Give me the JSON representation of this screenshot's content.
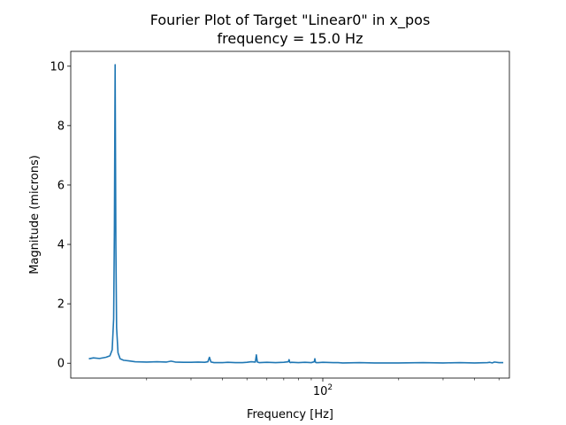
{
  "chart_data": {
    "type": "line",
    "title": "Fourier Plot of Target \"Linear0\" in x_pos",
    "subtitle": "frequency = 15.0 Hz",
    "xlabel": "Frequency [Hz]",
    "ylabel": "Magnitude (microns)",
    "xscale": "log",
    "xlim": [
      10,
      550
    ],
    "ylim": [
      -0.5,
      10.5
    ],
    "grid": false,
    "legend": "none",
    "x_ticks": [
      {
        "value": 100,
        "label": "10²"
      }
    ],
    "y_ticks": [
      {
        "value": 0,
        "label": "0"
      },
      {
        "value": 2,
        "label": "2"
      },
      {
        "value": 4,
        "label": "4"
      },
      {
        "value": 6,
        "label": "6"
      },
      {
        "value": 8,
        "label": "8"
      },
      {
        "value": 10,
        "label": "10"
      }
    ],
    "series": [
      {
        "color": "#1f77b4",
        "x": [
          11.8,
          12.3,
          13.0,
          13.8,
          14.3,
          14.6,
          14.8,
          14.9,
          15.0,
          15.1,
          15.2,
          15.4,
          15.7,
          16.2,
          17.0,
          18.0,
          20.0,
          22.0,
          24.0,
          25.0,
          26.0,
          28.0,
          30.0,
          32.0,
          34.0,
          35.0,
          35.5,
          36.0,
          36.5,
          37.0,
          40.0,
          42.0,
          45.0,
          48.0,
          50.0,
          52.0,
          54.0,
          54.5,
          55.0,
          55.5,
          56.0,
          60.0,
          65.0,
          70.0,
          73.0,
          73.5,
          74.0,
          74.5,
          75.0,
          80.0,
          85.0,
          90.0,
          92.5,
          93.0,
          93.5,
          94.0,
          96.0,
          100.0,
          110.0,
          115.0,
          120.0,
          140.0,
          160.0,
          200.0,
          250.0,
          300.0,
          350.0,
          400.0,
          450.0,
          460.0,
          470.0,
          480.0,
          500.0,
          520.0
        ],
        "y": [
          0.15,
          0.18,
          0.16,
          0.2,
          0.25,
          0.45,
          1.5,
          4.5,
          10.05,
          4.0,
          1.2,
          0.35,
          0.15,
          0.1,
          0.08,
          0.05,
          0.04,
          0.05,
          0.04,
          0.07,
          0.04,
          0.03,
          0.03,
          0.04,
          0.03,
          0.05,
          0.2,
          0.04,
          0.03,
          0.02,
          0.02,
          0.03,
          0.02,
          0.02,
          0.03,
          0.05,
          0.04,
          0.28,
          0.04,
          0.03,
          0.02,
          0.03,
          0.02,
          0.03,
          0.05,
          0.12,
          0.03,
          0.02,
          0.03,
          0.02,
          0.03,
          0.02,
          0.05,
          0.15,
          0.04,
          0.02,
          0.02,
          0.03,
          0.02,
          0.02,
          0.01,
          0.02,
          0.01,
          0.01,
          0.02,
          0.01,
          0.02,
          0.01,
          0.02,
          0.03,
          0.01,
          0.04,
          0.02,
          0.02
        ]
      }
    ]
  }
}
